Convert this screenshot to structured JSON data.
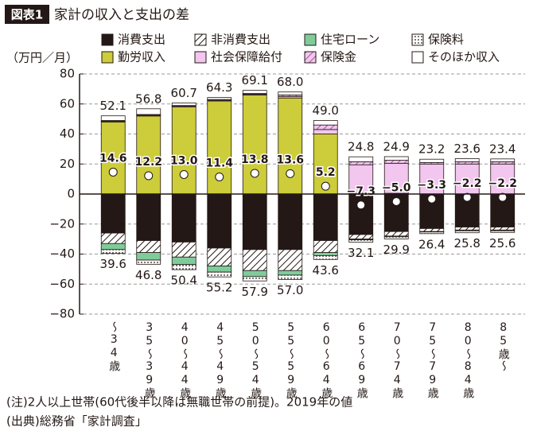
{
  "header": {
    "tag": "図表1",
    "title": "家計の収入と支出の差"
  },
  "chart_data": {
    "type": "bar",
    "stacked": true,
    "y_label": "（万円／月）",
    "categories": [
      "〜34歳",
      "35〜39歳",
      "40〜44歳",
      "45〜49歳",
      "50〜54歳",
      "55〜59歳",
      "60〜64歳",
      "65〜69歳",
      "70〜74歳",
      "75〜79歳",
      "80〜84歳",
      "85歳〜"
    ],
    "series": [
      {
        "name": "消費支出",
        "color": "#231815",
        "pattern": "solid",
        "values": [
          -26,
          -31,
          -32,
          -36,
          -37,
          -37,
          -31,
          -27,
          -25,
          -23,
          -22,
          -22
        ]
      },
      {
        "name": "非消費支出",
        "color": "#231815",
        "pattern": "hatch",
        "values": [
          -7,
          -8,
          -10,
          -12,
          -14,
          -14,
          -8,
          -3,
          -3,
          -2,
          -2,
          -2
        ]
      },
      {
        "name": "住宅ローン",
        "color": "#7fcc9a",
        "pattern": "solid",
        "values": [
          -4,
          -5,
          -5,
          -4,
          -4,
          -3,
          -2,
          -0.5,
          -0.5,
          -0.3,
          -0.5,
          -0.5
        ]
      },
      {
        "name": "保険料",
        "color": "#231815",
        "pattern": "dots",
        "values": [
          -2.6,
          -2.8,
          -3.4,
          -3.2,
          -2.9,
          -3,
          -2.6,
          -1.6,
          -1.4,
          -1.1,
          -1.3,
          -1.1
        ]
      },
      {
        "name": "勤労収入",
        "color": "#cdcc3a",
        "pattern": "solid",
        "values": [
          48,
          52,
          58,
          62,
          66,
          64,
          40,
          0.5,
          0.5,
          0,
          0,
          0
        ]
      },
      {
        "name": "社会保障給付",
        "color": "#f2c6ef",
        "pattern": "solid",
        "values": [
          0.5,
          0.5,
          0.5,
          0.5,
          0.5,
          1,
          3,
          19,
          20,
          20,
          20,
          20
        ]
      },
      {
        "name": "保険金",
        "color": "#b070a8",
        "pattern": "hatch",
        "values": [
          0.5,
          0.5,
          0.5,
          0.5,
          0.5,
          1,
          3,
          2,
          2,
          1,
          1.5,
          1.5
        ]
      },
      {
        "name": "そのほか収入",
        "color": "#ffffff",
        "pattern": "solid",
        "values": [
          3.1,
          3.8,
          1.7,
          1.3,
          2.1,
          2,
          3,
          3.3,
          2.4,
          2.2,
          2.1,
          1.9
        ]
      }
    ],
    "income_total": {
      "values": [
        52.1,
        56.8,
        60.7,
        64.3,
        69.1,
        68.0,
        49.0,
        24.8,
        24.9,
        23.2,
        23.6,
        23.4
      ],
      "value_labels": [
        "52.1",
        "56.8",
        "60.7",
        "64.3",
        "69.1",
        "68.0",
        "49.0",
        "24.8",
        "24.9",
        "23.2",
        "23.6",
        "23.4"
      ]
    },
    "expense_total": {
      "values": [
        39.6,
        46.8,
        50.4,
        55.2,
        57.9,
        57.0,
        43.6,
        32.1,
        29.9,
        26.4,
        25.8,
        25.6
      ],
      "value_labels": [
        "39.6",
        "46.8",
        "50.4",
        "55.2",
        "57.9",
        "57.0",
        "43.6",
        "32.1",
        "29.9",
        "26.4",
        "25.8",
        "25.6"
      ]
    },
    "balance": {
      "values": [
        14.6,
        12.2,
        13.0,
        11.4,
        13.8,
        13.6,
        5.2,
        -7.3,
        -5.0,
        -3.3,
        -2.2,
        -2.2
      ],
      "value_labels": [
        "14.6",
        "12.2",
        "13.0",
        "11.4",
        "13.8",
        "13.6",
        "5.2",
        "−7.3",
        "−5.0",
        "−3.3",
        "−2.2",
        "−2.2"
      ]
    },
    "ylim": [
      -80,
      80
    ],
    "yticks": [
      80,
      60,
      40,
      20,
      0,
      {
        "value": -20,
        "label": "−20"
      },
      {
        "value": -40,
        "label": "−40"
      },
      {
        "value": -60,
        "label": "−60"
      },
      {
        "value": -80,
        "label": "−80"
      }
    ],
    "grid": true
  },
  "notes": [
    "(注)2人以上世帯(60代後半以降は無職世帯の前提)。2019年の値",
    "(出典)総務省「家計調査」"
  ]
}
